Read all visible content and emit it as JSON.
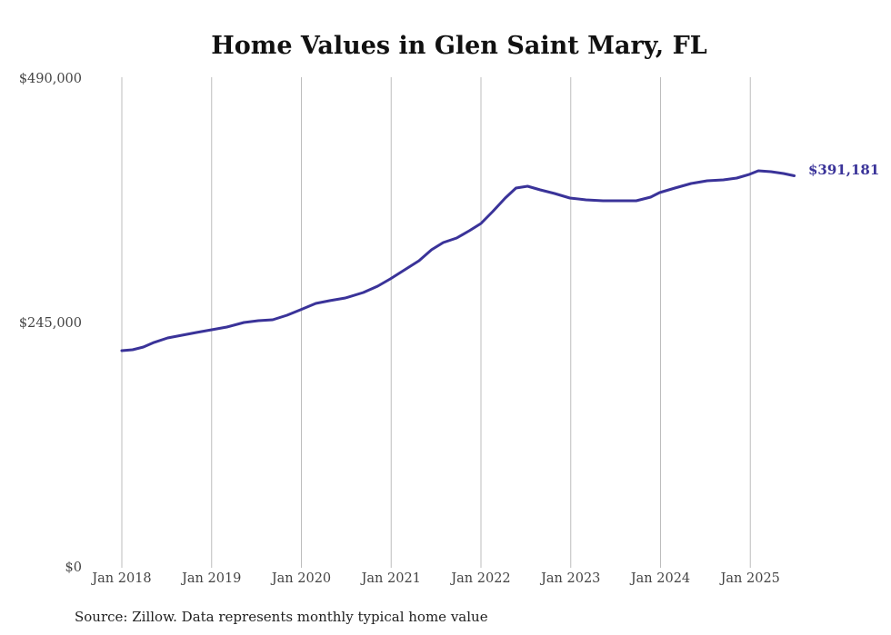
{
  "chart_data": {
    "type": "line",
    "title": "Home Values in Glen Saint Mary, FL",
    "xlabel": "",
    "ylabel": "",
    "ylim": [
      0,
      490000
    ],
    "xlim": [
      2018,
      2025.5
    ],
    "y_ticks": [
      {
        "value": 0,
        "label": "$0"
      },
      {
        "value": 245000,
        "label": "$245,000"
      },
      {
        "value": 490000,
        "label": "$490,000"
      }
    ],
    "x_ticks": [
      {
        "value": 2018,
        "label": "Jan 2018"
      },
      {
        "value": 2019,
        "label": "Jan 2019"
      },
      {
        "value": 2020,
        "label": "Jan 2020"
      },
      {
        "value": 2021,
        "label": "Jan 2021"
      },
      {
        "value": 2022,
        "label": "Jan 2022"
      },
      {
        "value": 2023,
        "label": "Jan 2023"
      },
      {
        "value": 2024,
        "label": "Jan 2024"
      },
      {
        "value": 2025,
        "label": "Jan 2025"
      }
    ],
    "grid": "vertical",
    "series": [
      {
        "name": "Typical home value",
        "color": "#3a3399",
        "end_label": "$391,181",
        "x": [
          2018.0,
          2018.12,
          2018.24,
          2018.36,
          2018.51,
          2018.67,
          2018.83,
          2019.0,
          2019.17,
          2019.36,
          2019.52,
          2019.68,
          2019.84,
          2019.99,
          2020.16,
          2020.32,
          2020.49,
          2020.69,
          2020.85,
          2020.99,
          2021.15,
          2021.31,
          2021.45,
          2021.58,
          2021.73,
          2021.87,
          2022.0,
          2022.13,
          2022.27,
          2022.39,
          2022.52,
          2022.66,
          2022.82,
          2022.99,
          2023.17,
          2023.36,
          2023.53,
          2023.73,
          2023.89,
          2023.99,
          2024.16,
          2024.34,
          2024.52,
          2024.7,
          2024.85,
          2024.99,
          2025.09,
          2025.23,
          2025.37,
          2025.49
        ],
        "values": [
          215900,
          216800,
          219500,
          224100,
          228600,
          231300,
          234100,
          236800,
          239500,
          244100,
          245900,
          246800,
          251400,
          256800,
          263200,
          266000,
          268700,
          274100,
          280500,
          287800,
          296900,
          306000,
          317000,
          324200,
          328800,
          336100,
          343400,
          355200,
          368900,
          378900,
          380700,
          377100,
          373400,
          368900,
          367000,
          366100,
          366100,
          366100,
          369800,
          374300,
          378900,
          383400,
          386200,
          387100,
          388900,
          392600,
          396200,
          395300,
          393500,
          391181
        ]
      }
    ],
    "source": "Source: Zillow. Data represents monthly typical home value"
  }
}
